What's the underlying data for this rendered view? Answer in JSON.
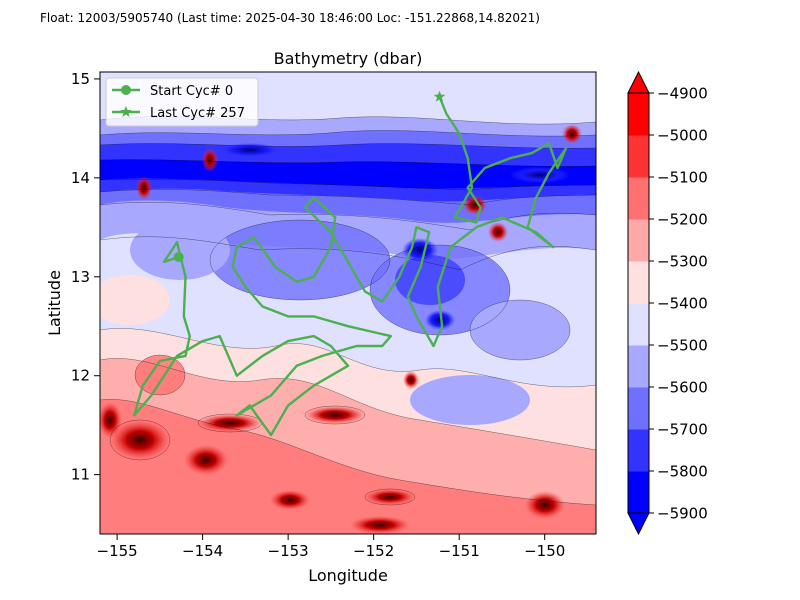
{
  "header": {
    "info": "Float: 12003/5905740 (Last time: 2025-04-30 18:46:00   Loc: -151.22868,14.82021)"
  },
  "chart_data": {
    "type": "contour",
    "title": "Bathymetry (dbar)",
    "xlabel": "Longitude",
    "ylabel": "Latitude",
    "xlim": [
      -155.2,
      -149.4
    ],
    "ylim": [
      10.4,
      15.07
    ],
    "xticks": [
      -155,
      -154,
      -153,
      -152,
      -151,
      -150
    ],
    "xtick_labels": [
      "−155",
      "−154",
      "−153",
      "−152",
      "−151",
      "−150"
    ],
    "yticks": [
      11,
      12,
      13,
      14,
      15
    ],
    "ytick_labels": [
      "11",
      "12",
      "13",
      "14",
      "15"
    ],
    "colorbar": {
      "levels": [
        -5900,
        -5800,
        -5700,
        -5600,
        -5500,
        -5400,
        -5300,
        -5200,
        -5100,
        -5000,
        -4900
      ],
      "labels": [
        "−5900",
        "−5800",
        "−5700",
        "−5600",
        "−5500",
        "−5400",
        "−5300",
        "−5200",
        "−5100",
        "−5000",
        "−4900"
      ],
      "colors": [
        "#0000ff",
        "#3333ff",
        "#7070ff",
        "#a8a8ff",
        "#e0e0ff",
        "#ffe0e0",
        "#ffa8a8",
        "#ff7070",
        "#ff3333",
        "#ff0000"
      ],
      "extend": "both"
    },
    "legend": {
      "position": "top-left",
      "entries": [
        {
          "label": "Start Cyc# 0",
          "marker": "circle",
          "color": "#4caf50"
        },
        {
          "label": "Last Cyc# 257",
          "marker": "star",
          "color": "#4caf50"
        }
      ]
    },
    "track": {
      "color": "#4caf50",
      "start": [
        -154.28,
        13.2
      ],
      "end": [
        -151.23,
        14.82
      ],
      "points": [
        [
          -154.28,
          13.2
        ],
        [
          -154.45,
          13.15
        ],
        [
          -154.3,
          13.35
        ],
        [
          -154.2,
          13.0
        ],
        [
          -154.22,
          12.6
        ],
        [
          -154.15,
          12.4
        ],
        [
          -154.2,
          12.2
        ],
        [
          -154.5,
          12.15
        ],
        [
          -154.7,
          11.9
        ],
        [
          -154.8,
          11.6
        ],
        [
          -154.6,
          11.8
        ],
        [
          -154.3,
          12.2
        ],
        [
          -154.0,
          12.35
        ],
        [
          -153.8,
          12.4
        ],
        [
          -153.6,
          12.0
        ],
        [
          -153.3,
          12.2
        ],
        [
          -153.0,
          12.35
        ],
        [
          -152.7,
          12.4
        ],
        [
          -152.5,
          12.3
        ],
        [
          -152.3,
          12.1
        ],
        [
          -152.7,
          11.9
        ],
        [
          -153.0,
          11.7
        ],
        [
          -153.2,
          11.4
        ],
        [
          -153.45,
          11.7
        ],
        [
          -153.6,
          11.6
        ],
        [
          -153.2,
          11.8
        ],
        [
          -152.9,
          12.1
        ],
        [
          -152.6,
          12.2
        ],
        [
          -152.2,
          12.3
        ],
        [
          -151.9,
          12.3
        ],
        [
          -151.8,
          12.4
        ],
        [
          -152.3,
          12.5
        ],
        [
          -152.7,
          12.6
        ],
        [
          -153.0,
          12.6
        ],
        [
          -153.3,
          12.7
        ],
        [
          -153.5,
          12.9
        ],
        [
          -153.65,
          13.1
        ],
        [
          -153.6,
          13.3
        ],
        [
          -153.4,
          13.4
        ],
        [
          -153.15,
          13.1
        ],
        [
          -152.9,
          12.95
        ],
        [
          -152.7,
          13.0
        ],
        [
          -152.5,
          13.3
        ],
        [
          -152.45,
          13.6
        ],
        [
          -152.7,
          13.8
        ],
        [
          -152.8,
          13.7
        ],
        [
          -152.5,
          13.45
        ],
        [
          -152.3,
          13.15
        ],
        [
          -152.1,
          12.85
        ],
        [
          -151.9,
          12.75
        ],
        [
          -151.7,
          13.0
        ],
        [
          -151.55,
          13.3
        ],
        [
          -151.5,
          13.5
        ],
        [
          -151.35,
          13.45
        ],
        [
          -151.45,
          13.1
        ],
        [
          -151.6,
          12.8
        ],
        [
          -151.5,
          12.6
        ],
        [
          -151.3,
          12.3
        ],
        [
          -151.2,
          12.5
        ],
        [
          -151.25,
          12.9
        ],
        [
          -151.1,
          13.3
        ],
        [
          -150.8,
          13.5
        ],
        [
          -150.5,
          13.6
        ],
        [
          -150.1,
          13.45
        ],
        [
          -149.9,
          13.3
        ],
        [
          -150.2,
          13.5
        ],
        [
          -150.1,
          13.8
        ],
        [
          -149.95,
          14.05
        ],
        [
          -149.75,
          14.3
        ],
        [
          -149.85,
          14.1
        ],
        [
          -149.95,
          14.35
        ],
        [
          -150.15,
          14.25
        ],
        [
          -150.4,
          14.2
        ],
        [
          -150.7,
          14.1
        ],
        [
          -150.9,
          13.9
        ],
        [
          -150.75,
          13.7
        ],
        [
          -150.8,
          13.55
        ],
        [
          -151.05,
          13.6
        ],
        [
          -150.85,
          13.9
        ],
        [
          -150.9,
          14.2
        ],
        [
          -151.0,
          14.45
        ],
        [
          -151.15,
          14.65
        ],
        [
          -151.23,
          14.82
        ]
      ]
    }
  }
}
